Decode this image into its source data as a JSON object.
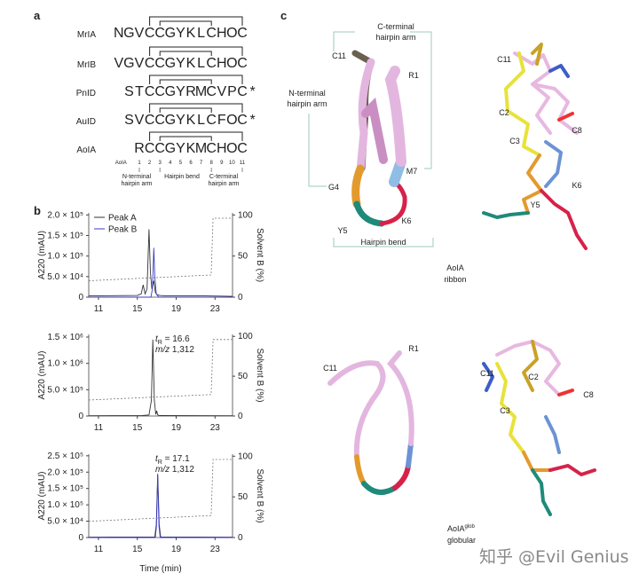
{
  "panel_a": {
    "label": "a",
    "rows": [
      {
        "name": "MrIA",
        "letters": [
          "N",
          "G",
          "V",
          "C",
          "C",
          "G",
          "Y",
          "K",
          "L",
          "C",
          "H",
          "O",
          "C"
        ]
      },
      {
        "name": "MrIB",
        "letters": [
          "V",
          "G",
          "V",
          "C",
          "C",
          "G",
          "Y",
          "K",
          "L",
          "C",
          "H",
          "O",
          "C"
        ]
      },
      {
        "name": "PnID",
        "letters": [
          "S",
          "T",
          "C",
          "C",
          "G",
          "Y",
          "R",
          "M",
          "C",
          "V",
          "P",
          "C",
          "*"
        ]
      },
      {
        "name": "AuID",
        "letters": [
          "S",
          "V",
          "C",
          "C",
          "G",
          "Y",
          "K",
          "L",
          "C",
          "F",
          "O",
          "C",
          "*"
        ]
      },
      {
        "name": "AoIA",
        "letters": [
          "R",
          "C",
          "C",
          "G",
          "Y",
          "K",
          "M",
          "C",
          "H",
          "O",
          "C"
        ]
      }
    ],
    "residue_colors": {
      "4": "#e39a2d",
      "5": "#2a8c7e",
      "6": "#d6224a",
      "7": "#5b8fd0",
      "10": "#bdb83c"
    },
    "numbering": {
      "name": "AoIA",
      "positions": [
        1,
        2,
        3,
        4,
        5,
        6,
        7,
        8,
        9,
        10,
        11
      ]
    },
    "regions": [
      {
        "lines": [
          "N-terminal",
          "hairpin arm"
        ]
      },
      {
        "lines": [
          "Hairpin bend"
        ]
      },
      {
        "lines": [
          "C-terminal",
          "hairpin arm"
        ]
      }
    ]
  },
  "panel_b": {
    "label": "b",
    "charts": [
      {
        "y_label": "A220 (mAU)",
        "y2_label": "Solvent B (%)",
        "xlim": [
          10,
          24.8
        ],
        "xticks": [
          11,
          15,
          19,
          23
        ],
        "ylim": [
          0,
          205000
        ],
        "yticks": [
          0,
          {
            "value": 50000,
            "label": "5.0 × 10⁴"
          },
          {
            "value": 100000,
            "label": "1.0 × 10⁵"
          },
          {
            "value": 150000,
            "label": "1.5 × 10⁵"
          },
          {
            "value": 200000,
            "label": "2.0 × 10⁵"
          }
        ],
        "y2lim": [
          0,
          102.5
        ],
        "y2ticks": [
          0,
          50,
          100
        ],
        "series": [
          {
            "name": "Peak A",
            "color": "#333333",
            "x": [
              10,
              15,
              15.4,
              15.6,
              15.8,
              16.0,
              16.2,
              16.35,
              16.5,
              16.7,
              16.85,
              17.0,
              17.3,
              18,
              22,
              24.8
            ],
            "values": [
              3000,
              4000,
              8000,
              30000,
              8000,
              20000,
              165000,
              60000,
              20000,
              40000,
              12000,
              6000,
              4000,
              3000,
              3000,
              2000
            ]
          },
          {
            "name": "Peak B",
            "color": "#3b3bc8",
            "x": [
              10,
              16.4,
              16.55,
              16.7,
              16.8,
              16.95,
              17.2,
              24.8
            ],
            "values": [
              0,
              0,
              20000,
              120000,
              50000,
              8000,
              0,
              0
            ]
          },
          {
            "color": "#777777",
            "axis": "y2",
            "dash": true,
            "x": [
              10,
              22.6,
              22.8,
              24.8
            ],
            "values": [
              20,
              27,
              96,
              96
            ]
          }
        ]
      },
      {
        "y_label": "A220 (mAU)",
        "y2_label": "Solvent B (%)",
        "xlim": [
          10,
          24.8
        ],
        "xticks": [
          11,
          15,
          19,
          23
        ],
        "ylim": [
          0,
          1550000
        ],
        "yticks": [
          0,
          {
            "value": 500000,
            "label": "5.0 × 10⁵"
          },
          {
            "value": 1000000,
            "label": "1.0 × 10⁶"
          },
          {
            "value": 1500000,
            "label": "1.5 × 10⁶"
          }
        ],
        "y2lim": [
          0,
          102.5
        ],
        "y2ticks": [
          0,
          50,
          100
        ],
        "retention": {
          "symbol": "t",
          "subscript": "R",
          "text": " = 16.6"
        },
        "mass": {
          "symbol": "m/z",
          "text": " 1,312"
        },
        "series": [
          {
            "color": "#333333",
            "x": [
              10,
              15.5,
              16.2,
              16.45,
              16.6,
              16.75,
              16.9,
              17.0,
              17.1,
              17.3,
              24.8
            ],
            "values": [
              5000,
              8000,
              20000,
              300000,
              1450000,
              300000,
              30000,
              100000,
              20000,
              8000,
              5000
            ]
          },
          {
            "color": "#777777",
            "axis": "y2",
            "dash": true,
            "x": [
              10,
              22.6,
              22.8,
              24.8
            ],
            "values": [
              20,
              27,
              96,
              96
            ]
          }
        ]
      },
      {
        "y_label": "A220 (mAU)",
        "y2_label": "Solvent B (%)",
        "x_label": "Time (min)",
        "xlim": [
          10,
          24.8
        ],
        "xticks": [
          11,
          15,
          19,
          23
        ],
        "ylim": [
          0,
          255000
        ],
        "yticks": [
          0,
          {
            "value": 50000,
            "label": "5.0 × 10⁴"
          },
          {
            "value": 100000,
            "label": "1.0 × 10⁵"
          },
          {
            "value": 150000,
            "label": "1.5 × 10⁵"
          },
          {
            "value": 200000,
            "label": "2.0 × 10⁵"
          },
          {
            "value": 250000,
            "label": "2.5 × 10⁵"
          }
        ],
        "y2lim": [
          0,
          102.5
        ],
        "y2ticks": [
          0,
          50,
          100
        ],
        "retention": {
          "symbol": "t",
          "subscript": "R",
          "text": " = 17.1"
        },
        "mass": {
          "symbol": "m/z",
          "text": " 1,312"
        },
        "series": [
          {
            "color": "#333333",
            "x": [
              10,
              16.8,
              16.95,
              17.1,
              17.25,
              17.4,
              24.8
            ],
            "values": [
              1000,
              2000,
              40000,
              195000,
              40000,
              2000,
              1000
            ]
          },
          {
            "color": "#3b3bc8",
            "x": [
              10,
              16.85,
              16.97,
              17.1,
              17.23,
              17.35,
              24.8
            ],
            "values": [
              0,
              0,
              35000,
              190000,
              35000,
              0,
              0
            ]
          },
          {
            "color": "#777777",
            "axis": "y2",
            "dash": true,
            "x": [
              10,
              22.6,
              22.8,
              24.8
            ],
            "values": [
              20,
              27,
              96,
              96
            ]
          }
        ]
      }
    ]
  },
  "panel_c": {
    "label": "c",
    "top_ribbon": {
      "c_terminal": [
        "C-terminal",
        "hairpin arm"
      ],
      "n_terminal": [
        "N-terminal",
        "hairpin arm"
      ],
      "bend": "Hairpin bend",
      "residues": [
        "C11",
        "R1",
        "M7",
        "G4",
        "Y5",
        "K6"
      ]
    },
    "top_sticks": [
      "C11",
      "C2",
      "C3",
      "C8",
      "K6",
      "Y5"
    ],
    "ribbon_caption": [
      "AoIA",
      "ribbon"
    ],
    "bottom_ribbon": [
      "C11",
      "R1"
    ],
    "bottom_sticks": [
      "C11",
      "C2",
      "C8",
      "C3"
    ],
    "globular_caption": {
      "name": "AoIA",
      "superscript": "glob",
      "line2": "globular"
    }
  },
  "watermark": "知乎 @Evil Genius"
}
